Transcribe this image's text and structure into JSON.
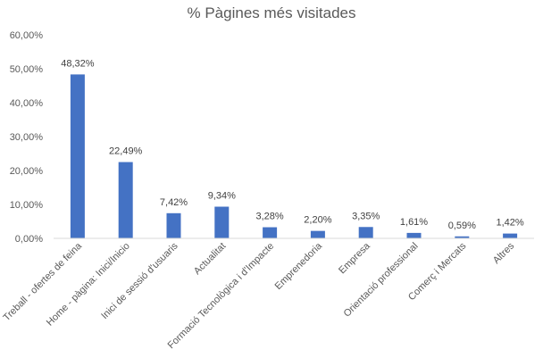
{
  "chart_data": {
    "type": "bar",
    "title": "% Pàgines més visitades",
    "categories": [
      "Treball - ofertes de feina",
      "Home - pàgina: Inici/Inicio",
      "Inici de sessió d'usuaris",
      "Actualitat",
      "Formació Tecnològica i d'Impacte",
      "Emprenedoria",
      "Empresa",
      "Orientació professional",
      "Comerç i Mercats",
      "Altres"
    ],
    "values": [
      48.32,
      22.49,
      7.42,
      9.34,
      3.28,
      2.2,
      3.35,
      1.61,
      0.59,
      1.42
    ],
    "data_labels": [
      "48,32%",
      "22,49%",
      "7,42%",
      "9,34%",
      "3,28%",
      "2,20%",
      "3,35%",
      "1,61%",
      "0,59%",
      "1,42%"
    ],
    "ylim": [
      0,
      60
    ],
    "yticks": [
      0,
      10,
      20,
      30,
      40,
      50,
      60
    ],
    "ytick_labels": [
      "0,00%",
      "10,00%",
      "20,00%",
      "30,00%",
      "40,00%",
      "50,00%",
      "60,00%"
    ],
    "xlabel": "",
    "ylabel": "",
    "grid": false,
    "legend": "none",
    "bar_color": "#4472C4"
  }
}
